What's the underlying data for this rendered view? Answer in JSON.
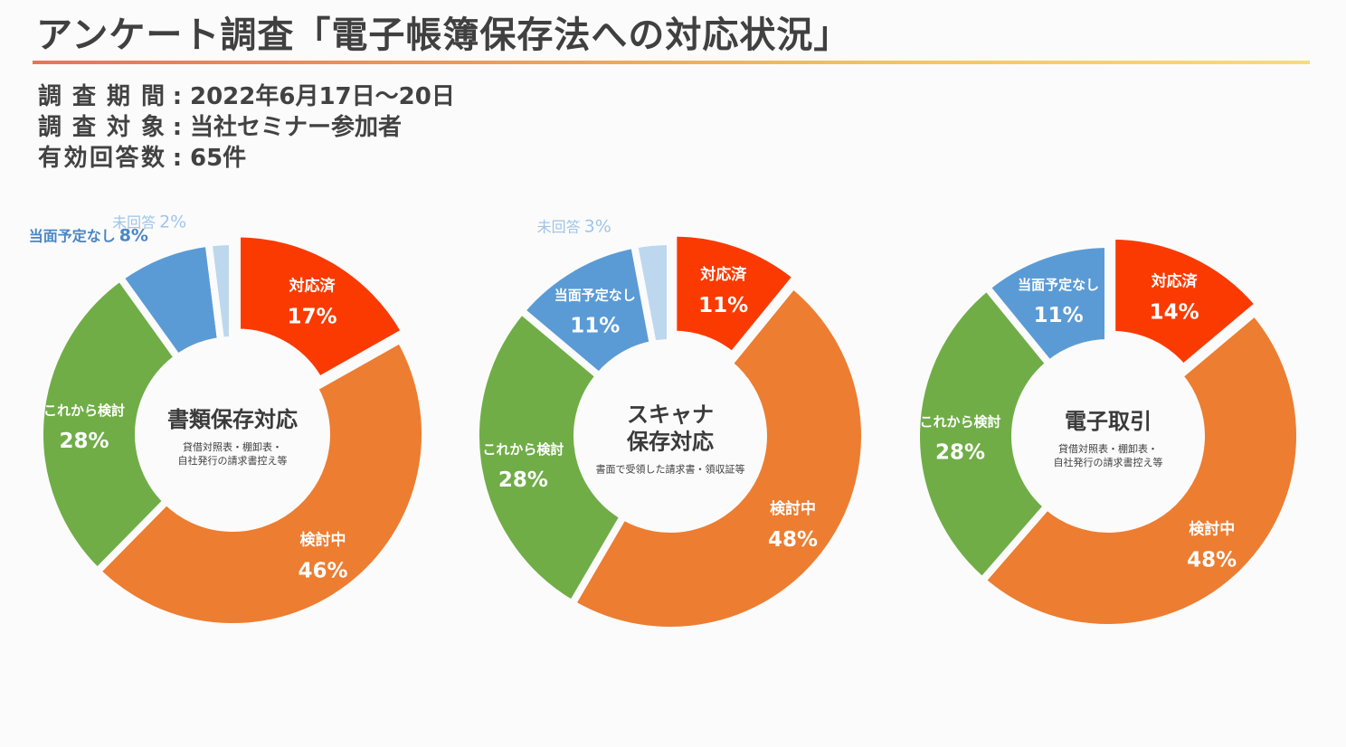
{
  "header": {
    "title": "アンケート調査「電子帳簿保存法への対応状況」"
  },
  "survey": [
    {
      "key": "調査期間",
      "sep": ":",
      "value": "2022年6月17日〜20日"
    },
    {
      "key": "調査対象",
      "sep": ":",
      "value": "当社セミナー参加者"
    },
    {
      "key": "有効回答数",
      "sep": ":",
      "value": "65件"
    }
  ],
  "colors": {
    "done": "#fa3a00",
    "considering": "#ed7d31",
    "future": "#70ad47",
    "none": "#5b9bd5",
    "noanswer": "#bdd7ee"
  },
  "chart_data": [
    {
      "type": "pie",
      "center_title": [
        "書類保存対応"
      ],
      "center_sub": [
        "貸借対照表・棚卸表・",
        "自社発行の請求書控え等"
      ],
      "slices": [
        {
          "label": "対応済",
          "value": 17,
          "text": "17%",
          "color": "#fa3a00"
        },
        {
          "label": "検討中",
          "value": 46,
          "text": "46%",
          "color": "#ed7d31"
        },
        {
          "label": "これから検討",
          "value": 28,
          "text": "28%",
          "color": "#70ad47"
        },
        {
          "label": "当面予定なし",
          "value": 8,
          "text": "8%",
          "color": "#5b9bd5"
        },
        {
          "label": "未回答",
          "value": 2,
          "text": "2%",
          "color": "#bdd7ee"
        }
      ]
    },
    {
      "type": "pie",
      "center_title": [
        "スキャナ",
        "保存対応"
      ],
      "center_sub": [
        "書面で受領した請求書・領収証等"
      ],
      "slices": [
        {
          "label": "対応済",
          "value": 11,
          "text": "11%",
          "color": "#fa3a00"
        },
        {
          "label": "検討中",
          "value": 48,
          "text": "48%",
          "color": "#ed7d31"
        },
        {
          "label": "これから検討",
          "value": 28,
          "text": "28%",
          "color": "#70ad47"
        },
        {
          "label": "当面予定なし",
          "value": 11,
          "text": "11%",
          "color": "#5b9bd5"
        },
        {
          "label": "未回答",
          "value": 3,
          "text": "3%",
          "color": "#bdd7ee"
        }
      ]
    },
    {
      "type": "pie",
      "center_title": [
        "電子取引"
      ],
      "center_sub": [
        "貸借対照表・棚卸表・",
        "自社発行の請求書控え等"
      ],
      "slices": [
        {
          "label": "対応済",
          "value": 14,
          "text": "14%",
          "color": "#fa3a00"
        },
        {
          "label": "検討中",
          "value": 48,
          "text": "48%",
          "color": "#ed7d31"
        },
        {
          "label": "これから検討",
          "value": 28,
          "text": "28%",
          "color": "#70ad47"
        },
        {
          "label": "当面予定なし",
          "value": 11,
          "text": "11%",
          "color": "#5b9bd5"
        }
      ]
    }
  ]
}
